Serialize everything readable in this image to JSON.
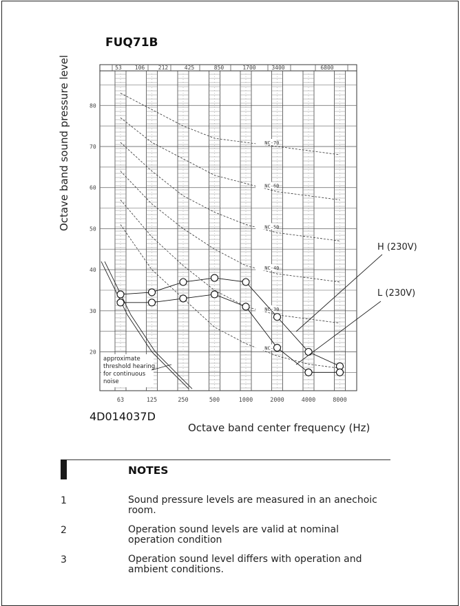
{
  "chart_data": {
    "type": "line",
    "title": "FUQ71B",
    "ylabel": "Octave band sound pressure level",
    "xlabel": "Octave band center frequency (Hz)",
    "xscale": "log",
    "x_ticks": [
      "63",
      "125",
      "250",
      "500",
      "1000",
      "2000",
      "4000",
      "8000"
    ],
    "x_top_ticks": [
      "53",
      "106",
      "212",
      "425",
      "850",
      "1700",
      "3400",
      "6800"
    ],
    "y_ticks": [
      20,
      30,
      40,
      50,
      60,
      70,
      80
    ],
    "ylim": [
      10,
      90
    ],
    "grid": true,
    "series": [
      {
        "name": "H (230V)",
        "x": [
          63,
          125,
          250,
          500,
          1000,
          2000,
          4000,
          8000
        ],
        "values": [
          34,
          34.5,
          37,
          38,
          37,
          28.5,
          20,
          16.5
        ]
      },
      {
        "name": "L (230V)",
        "x": [
          63,
          125,
          250,
          500,
          1000,
          2000,
          4000,
          8000
        ],
        "values": [
          32,
          32,
          33,
          34,
          31,
          21,
          15,
          15
        ]
      }
    ],
    "nc_curves": [
      {
        "label": "NC-70",
        "values": [
          83,
          79,
          75,
          72,
          71,
          70,
          69,
          68
        ]
      },
      {
        "label": "NC-60",
        "values": [
          77,
          71,
          67,
          63,
          61,
          59,
          58,
          57
        ]
      },
      {
        "label": "NC-50",
        "values": [
          71,
          64,
          58,
          54,
          51,
          49,
          48,
          47
        ]
      },
      {
        "label": "NC-40",
        "values": [
          64,
          56,
          50,
          45,
          41,
          39,
          38,
          37
        ]
      },
      {
        "label": "NC-30",
        "values": [
          57,
          48,
          41,
          35,
          31,
          29,
          28,
          27
        ]
      },
      {
        "label": "NC-20",
        "values": [
          51,
          40,
          33,
          26,
          22,
          19,
          17,
          16
        ]
      }
    ],
    "threshold_label": [
      "approximate",
      "threshold hearing",
      "for continuous",
      "noise"
    ],
    "threshold_values": [
      42,
      25,
      15,
      10
    ]
  },
  "drawing_code": "4D014037D",
  "notes": {
    "heading": "NOTES",
    "items": [
      {
        "num": "1",
        "lines": [
          "Sound pressure levels are measured in an anechoic",
          "room."
        ]
      },
      {
        "num": "2",
        "lines": [
          "Operation sound levels are valid at nominal",
          "operation condition"
        ]
      },
      {
        "num": "3",
        "lines": [
          "Operation sound level differs with operation and",
          "ambient conditions."
        ]
      }
    ]
  }
}
